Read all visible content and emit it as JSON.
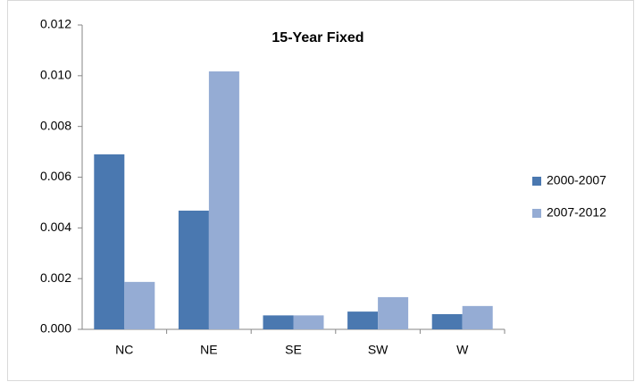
{
  "chart_data": {
    "type": "bar",
    "title": "15-Year Fixed",
    "categories": [
      "NC",
      "NE",
      "SE",
      "SW",
      "W"
    ],
    "series": [
      {
        "name": "2000-2007",
        "color": "#4a78b0",
        "values": [
          0.0069,
          0.00468,
          0.00055,
          0.0007,
          0.0006
        ]
      },
      {
        "name": "2007-2012",
        "color": "#95acd4",
        "values": [
          0.00187,
          0.01017,
          0.00055,
          0.00127,
          0.00092
        ]
      }
    ],
    "ylim": [
      0,
      0.012
    ],
    "yticks": [
      {
        "value": 0,
        "label": "0.000"
      },
      {
        "value": 0.002,
        "label": "0.002"
      },
      {
        "value": 0.004,
        "label": "0.004"
      },
      {
        "value": 0.006,
        "label": "0.006"
      },
      {
        "value": 0.008,
        "label": "0.008"
      },
      {
        "value": 0.01,
        "label": "0.010"
      },
      {
        "value": 0.012,
        "label": "0.012"
      }
    ],
    "legend": "right"
  }
}
